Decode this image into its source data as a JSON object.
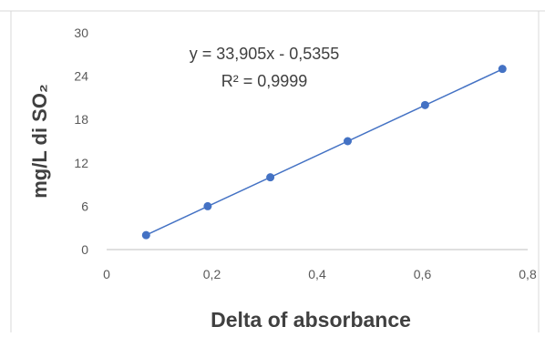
{
  "chart_data": {
    "type": "scatter",
    "xlabel": "Delta of absorbance",
    "ylabel": "mg/L di SO₂",
    "xlim": [
      0,
      0.8
    ],
    "ylim": [
      0,
      30
    ],
    "x_ticks": [
      "0",
      "0,2",
      "0,4",
      "0,6",
      "0,8"
    ],
    "y_ticks": [
      "0",
      "6",
      "12",
      "18",
      "24",
      "30"
    ],
    "x_tick_values": [
      0,
      0.2,
      0.4,
      0.6,
      0.8
    ],
    "y_tick_values": [
      0,
      6,
      12,
      18,
      24,
      30
    ],
    "grid": false,
    "series": [
      {
        "x": [
          0.075,
          0.192,
          0.311,
          0.458,
          0.605,
          0.752
        ],
        "y": [
          2,
          6,
          10,
          15,
          20,
          25
        ],
        "color": "#4472C4"
      }
    ],
    "trendline": {
      "type": "linear",
      "slope": 33.905,
      "intercept": -0.5355,
      "color": "#4472C4"
    },
    "annotations": {
      "equation": "y = 33,905x - 0,5355",
      "r_squared": "R² = 0,9999"
    }
  }
}
